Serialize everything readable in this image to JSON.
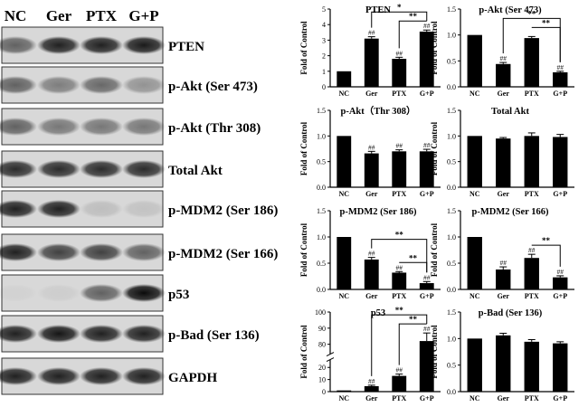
{
  "blots": {
    "lanes": [
      "NC",
      "Ger",
      "PTX",
      "G+P"
    ],
    "proteins": [
      "PTEN",
      "p-Akt (Ser 473)",
      "p-Akt (Thr 308)",
      "Total Akt",
      "p-MDM2 (Ser 186)",
      "p-MDM2 (Ser 166)",
      "p53",
      "p-Bad (Ser 136)",
      "GAPDH"
    ],
    "band_intensity": [
      [
        0.55,
        0.85,
        0.85,
        0.88
      ],
      [
        0.55,
        0.42,
        0.52,
        0.32
      ],
      [
        0.55,
        0.45,
        0.45,
        0.45
      ],
      [
        0.8,
        0.8,
        0.8,
        0.8
      ],
      [
        0.85,
        0.85,
        0.12,
        0.1
      ],
      [
        0.85,
        0.7,
        0.7,
        0.55
      ],
      [
        0.03,
        0.05,
        0.55,
        0.95
      ],
      [
        0.85,
        0.9,
        0.85,
        0.85
      ],
      [
        0.85,
        0.85,
        0.85,
        0.85
      ]
    ]
  },
  "chart_data": [
    {
      "type": "bar",
      "title": "PTEN",
      "categories": [
        "NC",
        "Ger",
        "PTX",
        "G+P"
      ],
      "values": [
        1.0,
        3.1,
        1.8,
        3.55
      ],
      "errors": [
        0,
        0.12,
        0.1,
        0.1
      ],
      "marks": [
        "",
        "##",
        "##",
        "##"
      ],
      "ylabel": "Fold of Control",
      "ylim": [
        0,
        5
      ],
      "yticks": [
        0,
        1,
        2,
        3,
        4,
        5
      ],
      "comparisons": [
        {
          "from": 1,
          "to": 3,
          "label": "*"
        },
        {
          "from": 2,
          "to": 3,
          "label": "**"
        }
      ]
    },
    {
      "type": "bar",
      "title": "p-Akt (Ser 473)",
      "categories": [
        "NC",
        "Ger",
        "PTX",
        "G+P"
      ],
      "values": [
        1.0,
        0.44,
        0.94,
        0.28
      ],
      "errors": [
        0,
        0.03,
        0.03,
        0.02
      ],
      "marks": [
        "",
        "##",
        "",
        "##"
      ],
      "ylabel": "Fold of Control",
      "ylim": [
        0,
        1.5
      ],
      "yticks": [
        0.0,
        0.5,
        1.0,
        1.5
      ],
      "comparisons": [
        {
          "from": 1,
          "to": 3,
          "label": "**"
        },
        {
          "from": 2,
          "to": 3,
          "label": "**"
        }
      ]
    },
    {
      "type": "bar",
      "title": "p-Akt（Thr 308）",
      "categories": [
        "NC",
        "Ger",
        "PTX",
        "G+P"
      ],
      "values": [
        1.0,
        0.66,
        0.7,
        0.7
      ],
      "errors": [
        0,
        0.04,
        0.03,
        0.04
      ],
      "marks": [
        "",
        "##",
        "##",
        "##"
      ],
      "ylabel": "Fold of Control",
      "ylim": [
        0,
        1.5
      ],
      "yticks": [
        0.0,
        0.5,
        1.0,
        1.5
      ],
      "comparisons": []
    },
    {
      "type": "bar",
      "title": "Total Akt",
      "categories": [
        "NC",
        "Ger",
        "PTX",
        "G+P"
      ],
      "values": [
        1.0,
        0.95,
        1.0,
        0.98
      ],
      "errors": [
        0,
        0.02,
        0.06,
        0.05
      ],
      "marks": [
        "",
        "",
        "",
        ""
      ],
      "ylabel": "Fold of Control",
      "ylim": [
        0,
        1.5
      ],
      "yticks": [
        0.0,
        0.5,
        1.0,
        1.5
      ],
      "comparisons": []
    },
    {
      "type": "bar",
      "title": "p-MDM2 (Ser 186)",
      "categories": [
        "NC",
        "Ger",
        "PTX",
        "G+P"
      ],
      "values": [
        1.0,
        0.57,
        0.32,
        0.12
      ],
      "errors": [
        0,
        0.04,
        0.02,
        0.03
      ],
      "marks": [
        "",
        "##",
        "##",
        "##"
      ],
      "ylabel": "Fold of Control",
      "ylim": [
        0,
        1.5
      ],
      "yticks": [
        0.0,
        0.5,
        1.0,
        1.5
      ],
      "comparisons": [
        {
          "from": 1,
          "to": 3,
          "label": "**"
        },
        {
          "from": 2,
          "to": 3,
          "label": "**"
        }
      ]
    },
    {
      "type": "bar",
      "title": "p-MDM2 (Ser 166)",
      "categories": [
        "NC",
        "Ger",
        "PTX",
        "G+P"
      ],
      "values": [
        1.0,
        0.38,
        0.6,
        0.23
      ],
      "errors": [
        0,
        0.05,
        0.07,
        0.03
      ],
      "marks": [
        "",
        "##",
        "##",
        "##"
      ],
      "ylabel": "Fold of Control",
      "ylim": [
        0,
        1.5
      ],
      "yticks": [
        0.0,
        0.5,
        1.0,
        1.5
      ],
      "comparisons": [
        {
          "from": 2,
          "to": 3,
          "label": "**"
        }
      ]
    },
    {
      "type": "bar",
      "title": "p53",
      "categories": [
        "NC",
        "Ger",
        "PTX",
        "G+P"
      ],
      "values": [
        1.0,
        4.5,
        13.0,
        82.0
      ],
      "errors": [
        0,
        0.8,
        1.5,
        5.0
      ],
      "marks": [
        "",
        "##",
        "##",
        "##"
      ],
      "ylabel": "Fold of Control",
      "ylim": [
        0,
        100
      ],
      "axis_break": [
        25,
        75
      ],
      "yticks": [
        0,
        10,
        20,
        80,
        90,
        100
      ],
      "comparisons": [
        {
          "from": 1,
          "to": 3,
          "label": "**"
        },
        {
          "from": 2,
          "to": 3,
          "label": "**"
        }
      ]
    },
    {
      "type": "bar",
      "title": "p-Bad (Ser 136)",
      "categories": [
        "NC",
        "Ger",
        "PTX",
        "G+P"
      ],
      "values": [
        1.0,
        1.06,
        0.94,
        0.91
      ],
      "errors": [
        0,
        0.04,
        0.04,
        0.03
      ],
      "marks": [
        "",
        "",
        "",
        ""
      ],
      "ylabel": "Fold of Control",
      "ylim": [
        0,
        1.5
      ],
      "yticks": [
        0.0,
        0.5,
        1.0,
        1.5
      ],
      "comparisons": []
    }
  ]
}
